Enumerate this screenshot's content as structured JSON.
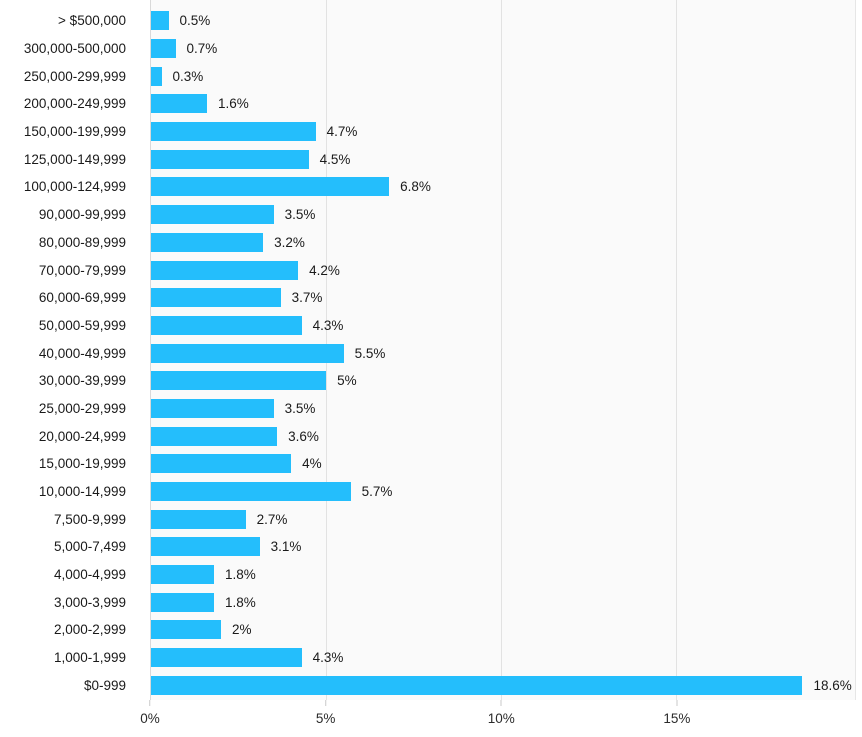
{
  "chart_data": {
    "type": "bar",
    "orientation": "horizontal",
    "grid": true,
    "legend": false,
    "bar_color": "#24befc",
    "xlim": [
      0,
      20.1
    ],
    "categories": [
      "> $500,000",
      "300,000-500,000",
      "250,000-299,999",
      "200,000-249,999",
      "150,000-199,999",
      "125,000-149,999",
      "100,000-124,999",
      "90,000-99,999",
      "80,000-89,999",
      "70,000-79,999",
      "60,000-69,999",
      "50,000-59,999",
      "40,000-49,999",
      "30,000-39,999",
      "25,000-29,999",
      "20,000-24,999",
      "15,000-19,999",
      "10,000-14,999",
      "7,500-9,999",
      "5,000-7,499",
      "4,000-4,999",
      "3,000-3,999",
      "2,000-2,999",
      "1,000-1,999",
      "$0-999"
    ],
    "values": [
      0.5,
      0.7,
      0.3,
      1.6,
      4.7,
      4.5,
      6.8,
      3.5,
      3.2,
      4.2,
      3.7,
      4.3,
      5.5,
      5,
      3.5,
      3.6,
      4,
      5.7,
      2.7,
      3.1,
      1.8,
      1.8,
      2,
      4.3,
      18.6
    ],
    "value_labels": [
      "0.5%",
      "0.7%",
      "0.3%",
      "1.6%",
      "4.7%",
      "4.5%",
      "6.8%",
      "3.5%",
      "3.2%",
      "4.2%",
      "3.7%",
      "4.3%",
      "5.5%",
      "5%",
      "3.5%",
      "3.6%",
      "4%",
      "5.7%",
      "2.7%",
      "3.1%",
      "1.8%",
      "1.8%",
      "2%",
      "4.3%",
      "18.6%"
    ],
    "x_ticks": [
      {
        "value": 0,
        "label": "0%"
      },
      {
        "value": 5,
        "label": "5%"
      },
      {
        "value": 10,
        "label": "10%"
      },
      {
        "value": 15,
        "label": "15%"
      }
    ]
  }
}
